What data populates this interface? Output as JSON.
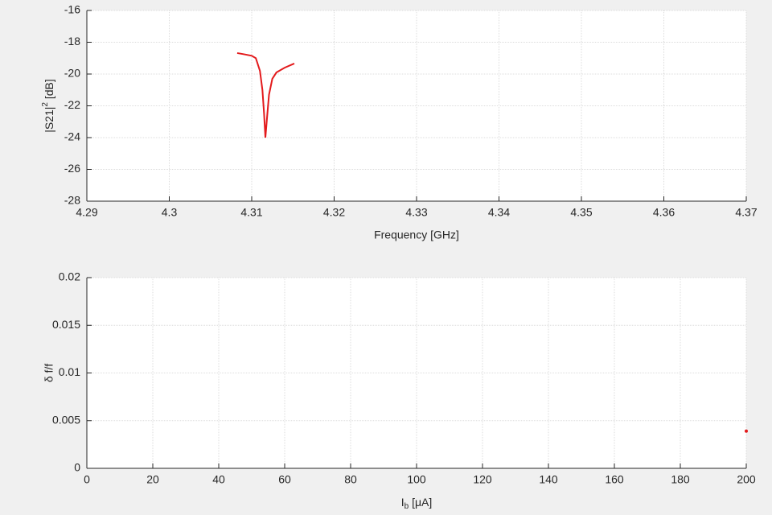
{
  "chart_data": [
    {
      "type": "line",
      "xlabel": "Frequency [GHz]",
      "ylabel": [
        "|S21|",
        "2",
        " [dB]"
      ],
      "x": [
        4.30824,
        4.309,
        4.31,
        4.3105,
        4.311,
        4.3113,
        4.3115,
        4.31166,
        4.3119,
        4.3121,
        4.3125,
        4.313,
        4.314,
        4.31517
      ],
      "series": [
        {
          "color": "#e31a1c",
          "values": [
            -18.68,
            -18.75,
            -18.85,
            -19.0,
            -19.8,
            -21.0,
            -22.5,
            -24.0,
            -22.5,
            -21.3,
            -20.3,
            -19.9,
            -19.6,
            -19.34
          ]
        }
      ],
      "xlim": [
        4.29,
        4.37
      ],
      "xticks": [
        4.29,
        4.3,
        4.31,
        4.32,
        4.33,
        4.34,
        4.35,
        4.36,
        4.37
      ],
      "ylim": [
        -28,
        -16
      ],
      "yticks": [
        -28,
        -26,
        -24,
        -22,
        -20,
        -18,
        -16
      ],
      "grid": true
    },
    {
      "type": "scatter",
      "xlabel": [
        "I",
        "b",
        " [μA]"
      ],
      "ylabel": "δ f/f",
      "x": [
        200
      ],
      "series": [
        {
          "color": "#e31a1c",
          "values": [
            0.0039
          ]
        }
      ],
      "xlim": [
        0,
        200
      ],
      "xticks": [
        0,
        20,
        40,
        60,
        80,
        100,
        120,
        140,
        160,
        180,
        200
      ],
      "ylim": [
        0,
        0.02
      ],
      "yticks": [
        0,
        0.005,
        0.01,
        0.015,
        0.02
      ],
      "grid": true
    }
  ]
}
